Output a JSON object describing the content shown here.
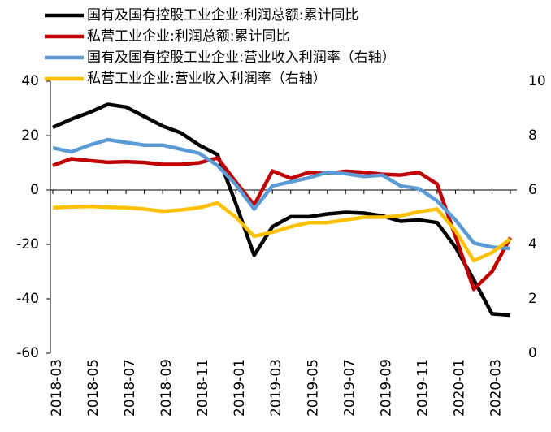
{
  "chart_data": {
    "type": "line",
    "categories": [
      "2018-03",
      null,
      "2018-05",
      null,
      "2018-07",
      null,
      "2018-09",
      null,
      "2018-11",
      null,
      "2019-01",
      null,
      "2019-03",
      null,
      "2019-05",
      null,
      "2019-07",
      null,
      "2019-09",
      null,
      "2019-11",
      null,
      "2020-01",
      null,
      "2020-03",
      null
    ],
    "series": [
      {
        "name": "国有及国有控股工业企业:利润总额:累计同比",
        "color": "#000000",
        "values": [
          23,
          26,
          28.5,
          31.5,
          30.5,
          27,
          23.5,
          21,
          16.5,
          13,
          -5,
          -24,
          -13.5,
          -9.8,
          -9.8,
          -8.8,
          -8.2,
          -8.5,
          -9.5,
          -11.5,
          -11,
          -12,
          -21,
          -33,
          -45.5,
          -46
        ]
      },
      {
        "name": "私营工业企业:利润总额:累计同比",
        "color": "#c00000",
        "values": [
          9,
          11.5,
          10.8,
          10.2,
          10.4,
          10.1,
          9.4,
          9.4,
          10,
          11.8,
          3,
          -5.5,
          7,
          4.3,
          6.5,
          6,
          6.9,
          6.5,
          5.8,
          5.5,
          6.5,
          2.2,
          -17,
          -36.5,
          -30,
          -17.5
        ]
      },
      {
        "name": "国有及国有控股工业企业:营业收入利润率（右轴）",
        "color": "#5b9bd5",
        "axis": "y2",
        "values": [
          7.55,
          7.4,
          7.65,
          7.85,
          7.75,
          7.65,
          7.65,
          7.5,
          7.35,
          6.9,
          6.2,
          5.3,
          6.15,
          6.3,
          6.45,
          6.65,
          6.6,
          6.5,
          6.55,
          6.15,
          6.05,
          5.6,
          4.9,
          4.05,
          3.9,
          3.85
        ]
      },
      {
        "name": "私营工业企业:营业收入利润率（右轴）",
        "color": "#ffc000",
        "axis": "y2",
        "values": [
          5.35,
          5.38,
          5.4,
          5.37,
          5.35,
          5.3,
          5.22,
          5.27,
          5.35,
          5.52,
          5.0,
          4.3,
          4.45,
          4.65,
          4.8,
          4.8,
          4.9,
          5.0,
          5.0,
          5.05,
          5.2,
          5.3,
          4.5,
          3.4,
          3.7,
          4.2
        ]
      }
    ],
    "ylim": [
      -60,
      40
    ],
    "yticks": [
      -60,
      -40,
      -20,
      0,
      20,
      40
    ],
    "y2lim": [
      0,
      10
    ],
    "y2ticks": [
      0,
      2,
      4,
      6,
      8,
      10
    ],
    "legend": "top-left"
  }
}
